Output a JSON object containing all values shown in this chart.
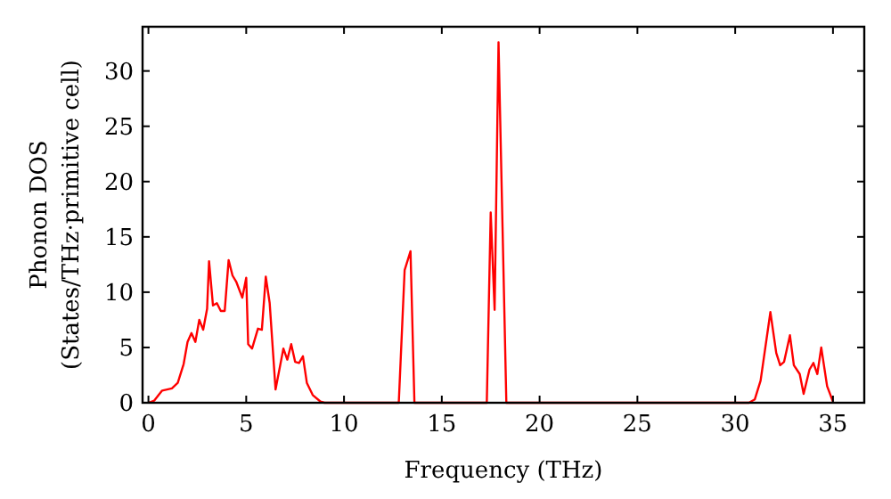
{
  "chart_data": {
    "type": "line",
    "xlabel": "Frequency (THz)",
    "ylabel": "Phonon DOS\n(States/THz·primitive cell)",
    "xlim": [
      -0.3,
      36.6
    ],
    "ylim": [
      0,
      34
    ],
    "xticks": [
      0,
      5,
      10,
      15,
      20,
      25,
      30,
      35
    ],
    "yticks": [
      0,
      5,
      10,
      15,
      20,
      25,
      30
    ],
    "grid": false,
    "marker": "none",
    "line_style": "solid",
    "series": [
      {
        "color": "#ff0000",
        "x": [
          0,
          0.3,
          0.7,
          1.2,
          1.5,
          1.8,
          2.0,
          2.2,
          2.4,
          2.6,
          2.8,
          3.0,
          3.1,
          3.3,
          3.5,
          3.7,
          3.9,
          4.1,
          4.3,
          4.5,
          4.8,
          5.0,
          5.1,
          5.3,
          5.6,
          5.8,
          6.0,
          6.2,
          6.5,
          6.9,
          7.1,
          7.3,
          7.5,
          7.7,
          7.9,
          8.1,
          8.4,
          8.8,
          9.0,
          12.8,
          13.1,
          13.4,
          13.6,
          17.3,
          17.5,
          17.7,
          17.9,
          18.3,
          30.7,
          31.0,
          31.3,
          31.8,
          32.1,
          32.3,
          32.5,
          32.8,
          33.0,
          33.3,
          33.5,
          33.8,
          34.0,
          34.2,
          34.4,
          34.7,
          35.0
        ],
        "values": [
          0,
          0.2,
          1.1,
          1.3,
          1.8,
          3.5,
          5.5,
          6.3,
          5.5,
          7.5,
          6.6,
          8.5,
          12.8,
          8.8,
          9.0,
          8.3,
          8.3,
          12.9,
          11.5,
          10.9,
          9.5,
          11.3,
          5.3,
          4.9,
          6.7,
          6.6,
          11.4,
          9.0,
          1.2,
          4.9,
          3.9,
          5.3,
          3.7,
          3.6,
          4.2,
          1.8,
          0.7,
          0.1,
          0,
          0,
          12,
          13.7,
          0,
          0,
          17.2,
          8.4,
          32.6,
          0,
          0,
          0.3,
          2.0,
          8.2,
          4.5,
          3.4,
          3.7,
          6.1,
          3.4,
          2.6,
          0.8,
          3.0,
          3.6,
          2.6,
          5.0,
          1.5,
          0.1
        ]
      }
    ]
  }
}
